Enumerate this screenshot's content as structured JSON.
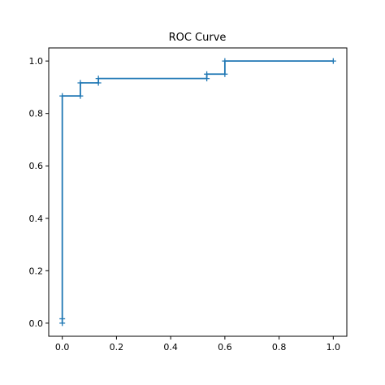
{
  "chart_data": {
    "type": "line",
    "title": "ROC Curve",
    "xlabel": "",
    "ylabel": "",
    "xlim": [
      -0.05,
      1.05
    ],
    "ylim": [
      -0.05,
      1.05
    ],
    "xticks": [
      0.0,
      0.2,
      0.4,
      0.6,
      0.8,
      1.0
    ],
    "yticks": [
      0.0,
      0.2,
      0.4,
      0.6,
      0.8,
      1.0
    ],
    "xtick_labels": [
      "0.0",
      "0.2",
      "0.4",
      "0.6",
      "0.8",
      "1.0"
    ],
    "ytick_labels": [
      "0.0",
      "0.2",
      "0.4",
      "0.6",
      "0.8",
      "1.0"
    ],
    "grid": false,
    "line_style": "step",
    "marker": "+",
    "colors": {
      "line": "#1f77b4",
      "axes": "#000000"
    },
    "series": [
      {
        "x": [
          0.0,
          0.0,
          0.0,
          0.0667,
          0.0667,
          0.1333,
          0.1333,
          0.5333,
          0.5333,
          0.6,
          0.6,
          1.0
        ],
        "y": [
          0.0,
          0.0167,
          0.8667,
          0.8667,
          0.9167,
          0.9167,
          0.9333,
          0.9333,
          0.95,
          0.95,
          1.0,
          1.0
        ]
      }
    ]
  }
}
